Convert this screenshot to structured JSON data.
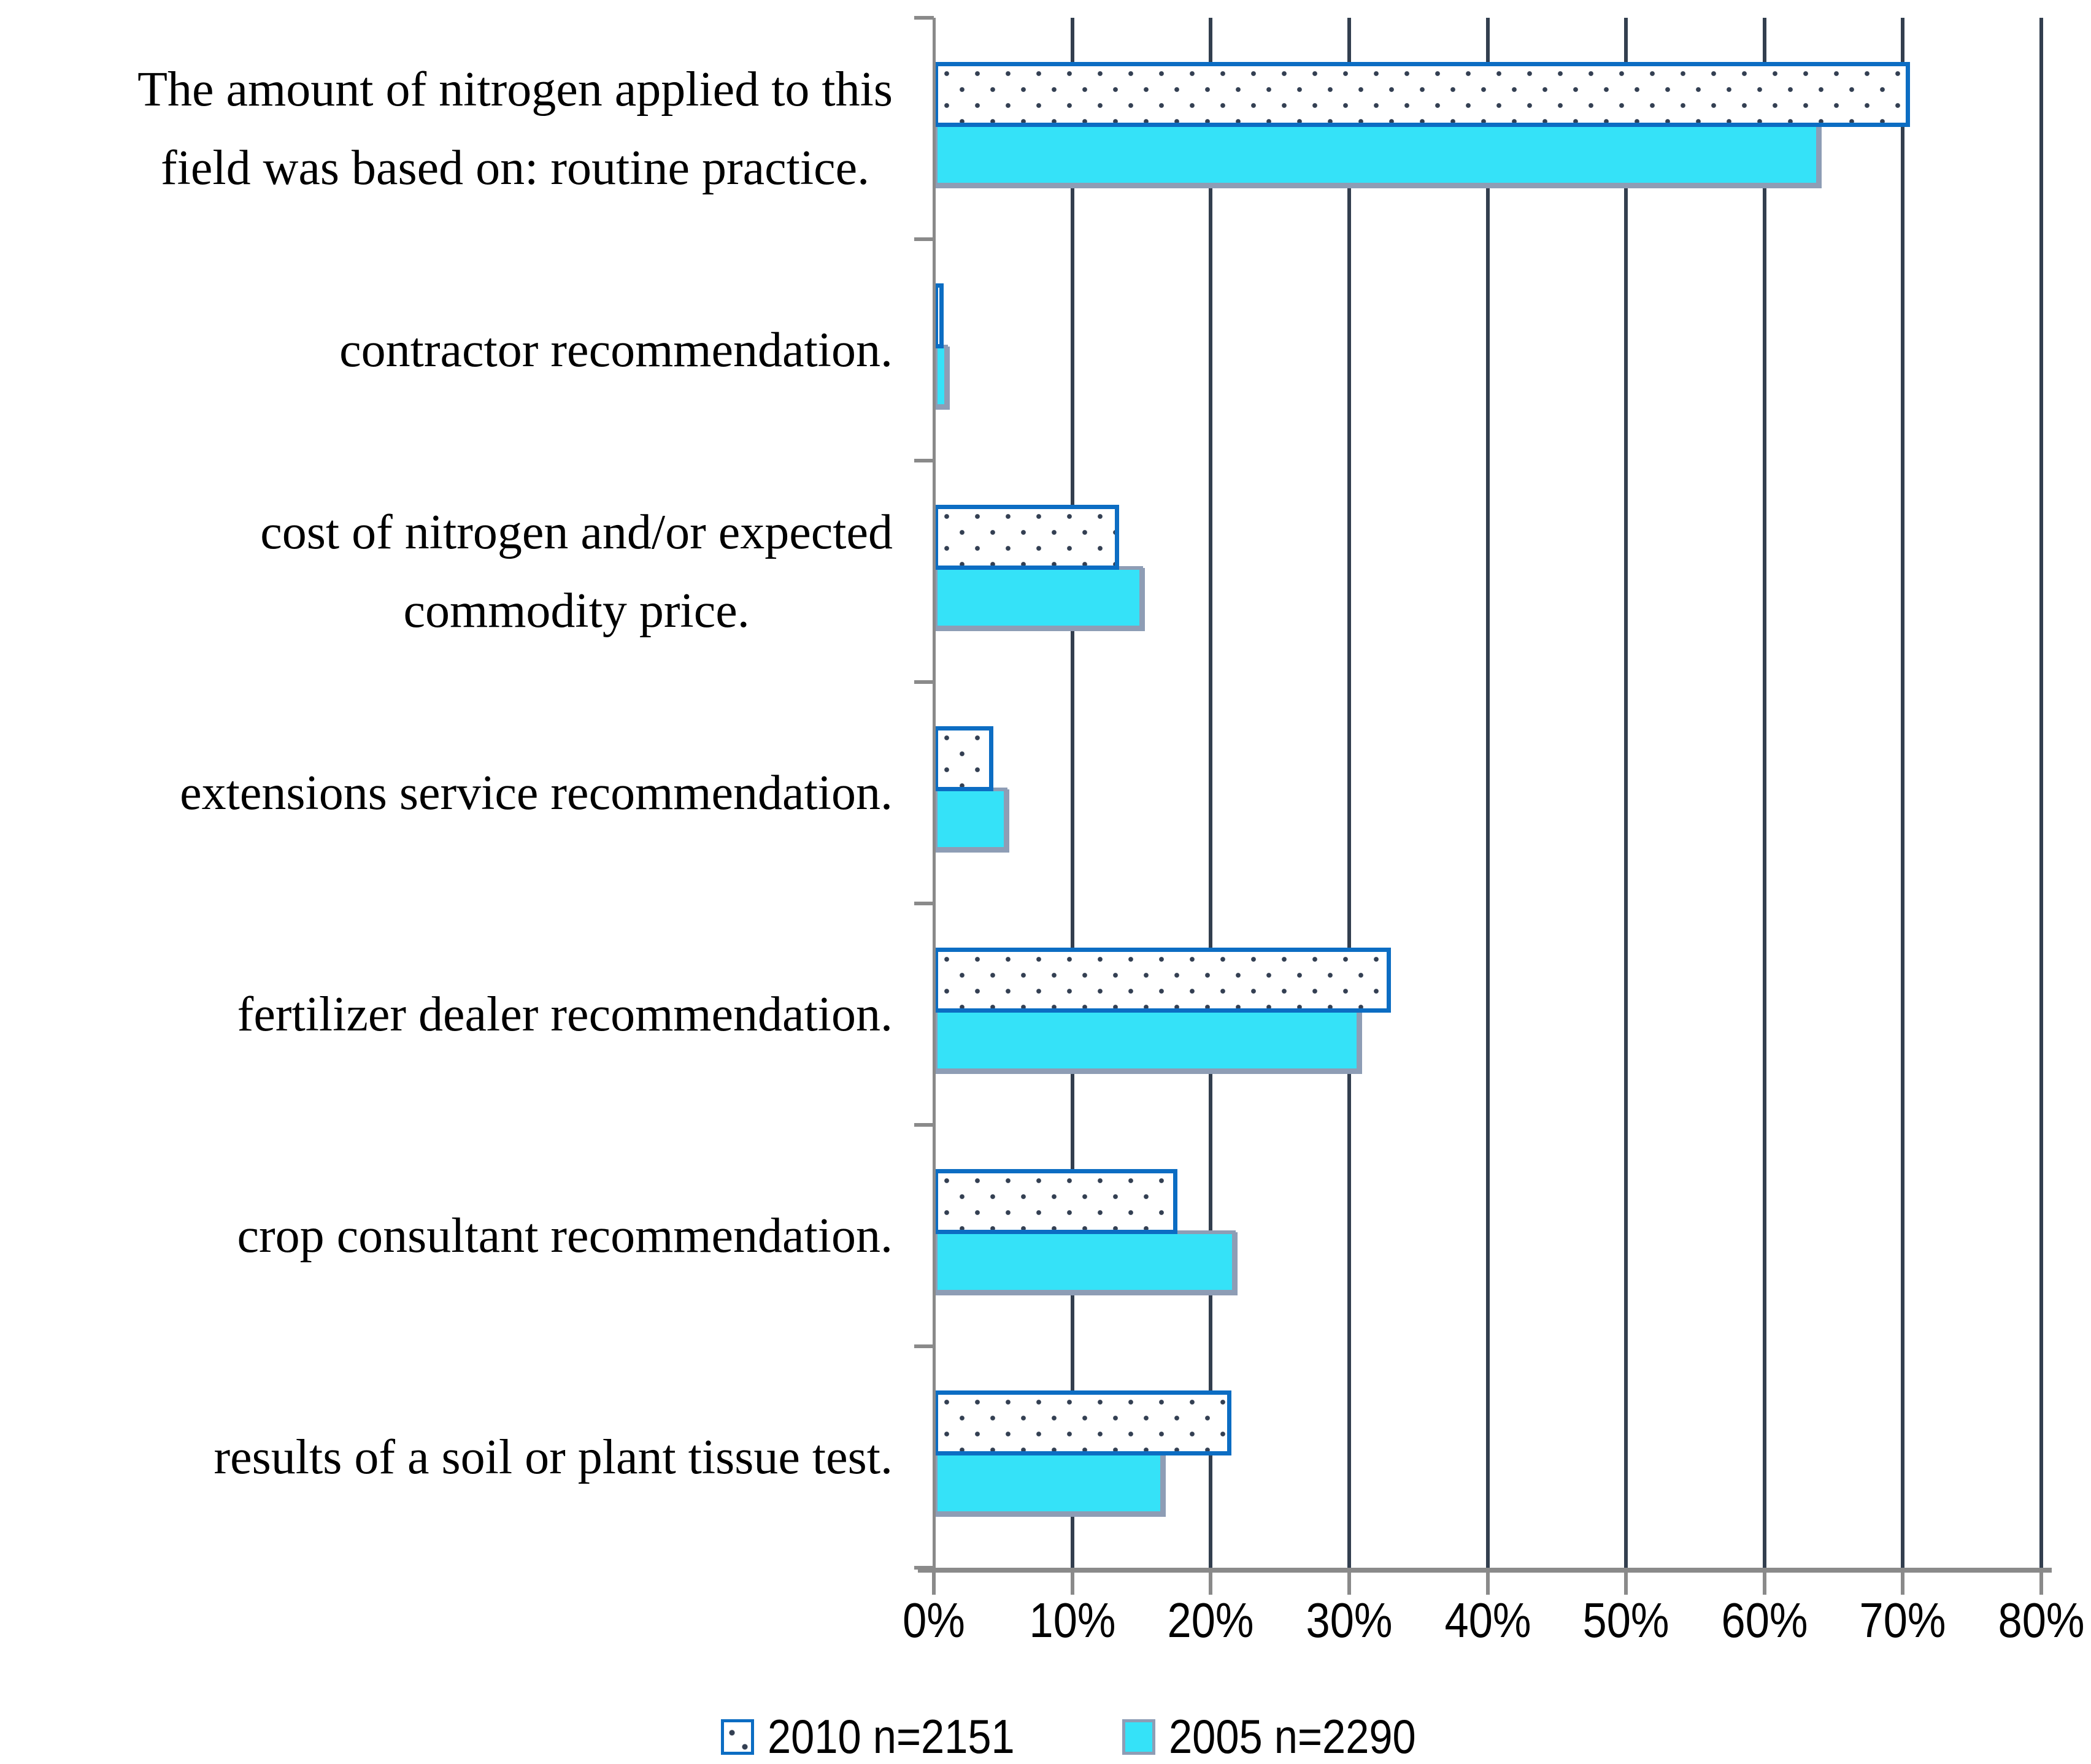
{
  "chart_data": {
    "type": "bar",
    "orientation": "horizontal",
    "title": "",
    "xlabel": "",
    "ylabel": "",
    "categories": [
      "The amount of nitrogen applied to this\nfield was based on: routine practice.",
      "contractor recommendation.",
      "cost of nitrogen and/or expected\ncommodity price.",
      "extensions service recommendation.",
      "fertilizer dealer recommendation.",
      "crop consultant recommendation.",
      "results of a soil or plant tissue test."
    ],
    "series": [
      {
        "name": "2010 n=2151",
        "values": [
          70.5,
          0.7,
          13.4,
          4.3,
          33.0,
          17.6,
          21.5
        ],
        "fill": "#FFFFFF",
        "border_color": "#0C6DC3",
        "pattern": "dotted"
      },
      {
        "name": "2005 n=2290",
        "values": [
          64.0,
          1.0,
          15.1,
          5.3,
          30.8,
          21.8,
          16.6
        ],
        "fill": "#35E2F8",
        "border_color": "#8E9DB5",
        "pattern": "solid"
      }
    ],
    "x_ticks": [
      "0%",
      "10%",
      "20%",
      "30%",
      "40%",
      "50%",
      "60%",
      "70%",
      "80%"
    ],
    "xlim": [
      0,
      80
    ],
    "grid": "vertical-major-lines",
    "gridline_color": "#333F4F",
    "axis_color": "#8A8A8A",
    "legend_position": "bottom-center"
  },
  "legend": {
    "items": [
      {
        "label": "2010 n=2151"
      },
      {
        "label": "2005 n=2290"
      }
    ]
  }
}
